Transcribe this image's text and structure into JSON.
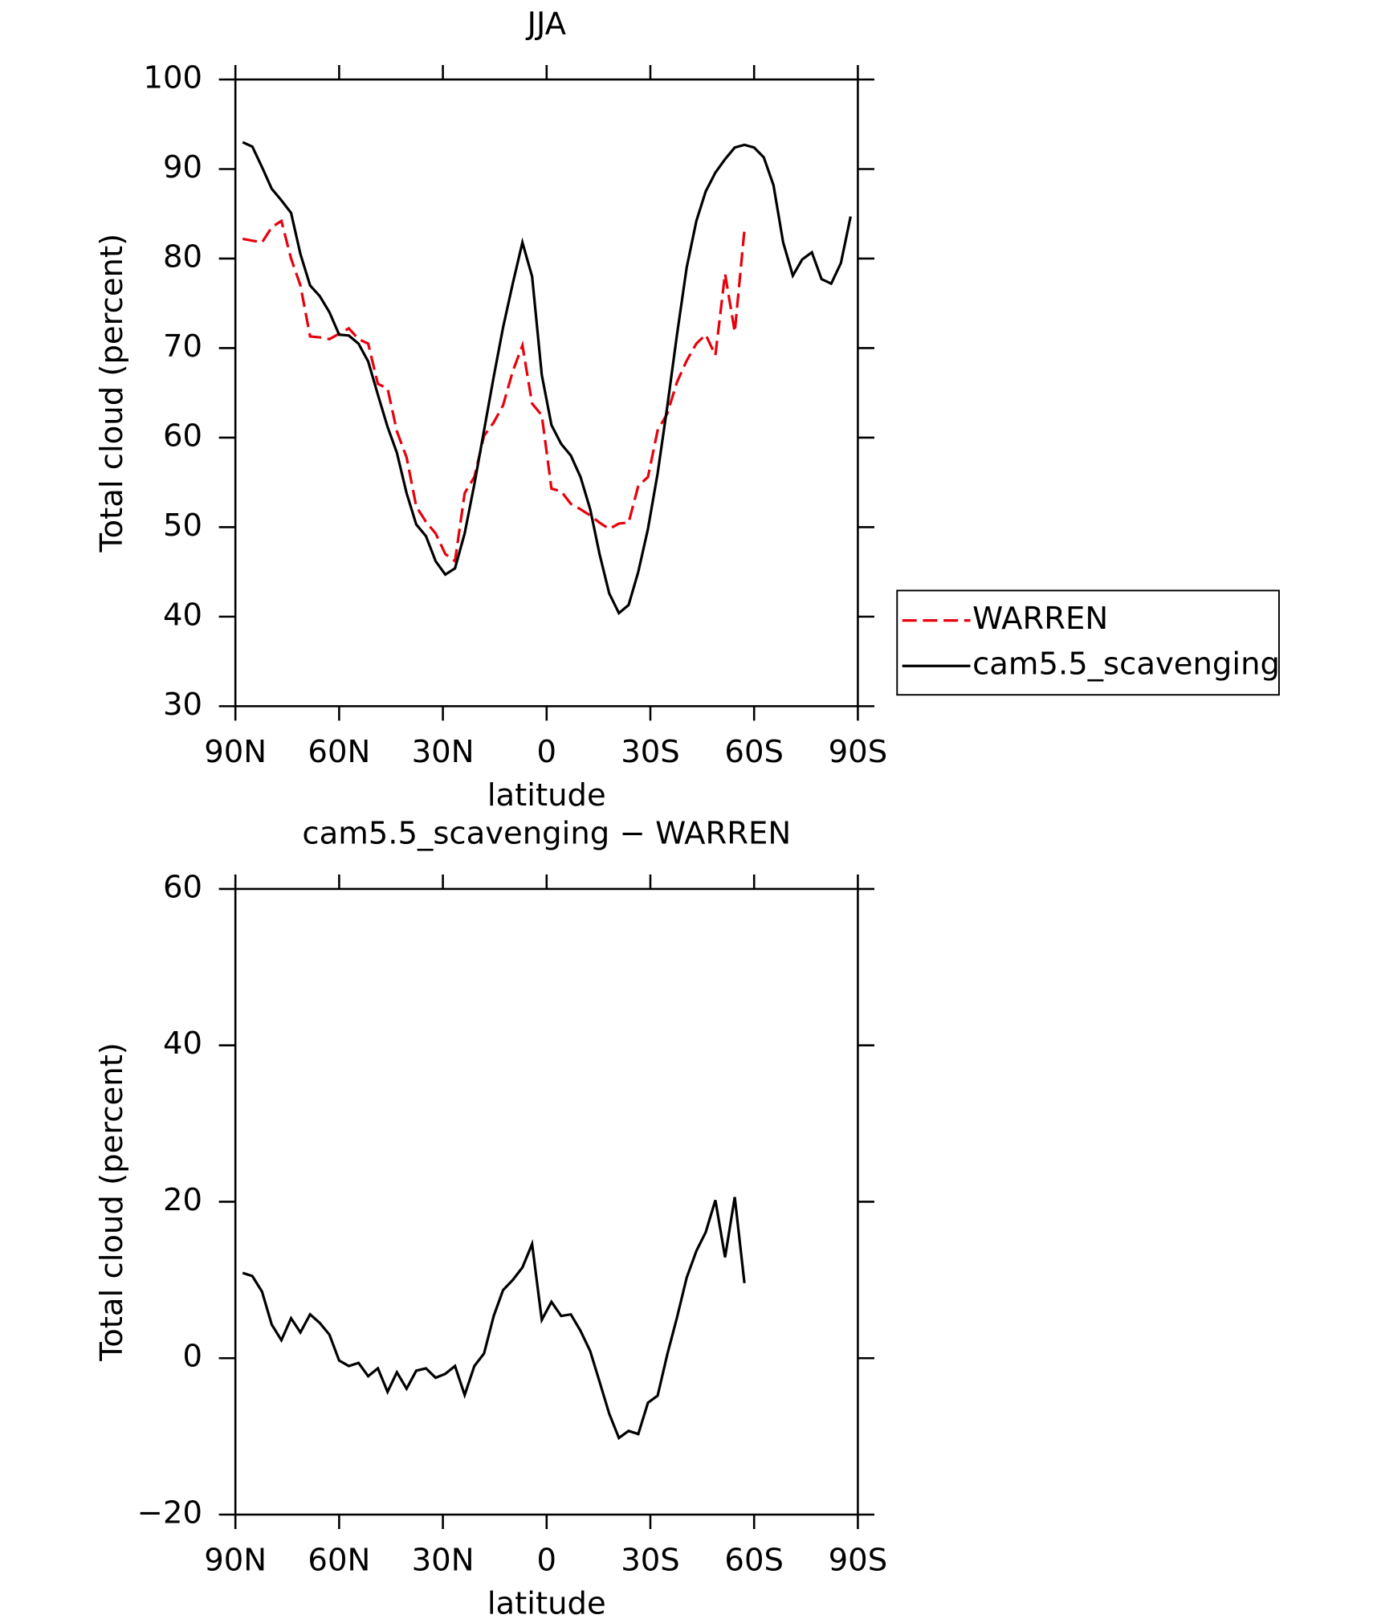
{
  "chart_data": [
    {
      "type": "line",
      "title": "JJA",
      "xlabel": "latitude",
      "ylabel": "Total cloud (percent)",
      "x": [
        87.9,
        85.1,
        82.3,
        79.5,
        76.7,
        73.9,
        71.2,
        68.4,
        65.6,
        62.8,
        60.0,
        57.2,
        54.4,
        51.6,
        48.8,
        46.0,
        43.3,
        40.5,
        37.7,
        34.9,
        32.1,
        29.3,
        26.5,
        23.7,
        20.9,
        18.1,
        15.3,
        12.6,
        9.8,
        7.0,
        4.2,
        1.4,
        -1.4,
        -4.2,
        -7.0,
        -9.8,
        -12.6,
        -15.3,
        -18.1,
        -20.9,
        -23.7,
        -26.5,
        -29.3,
        -32.1,
        -34.9,
        -37.7,
        -40.5,
        -43.3,
        -46.0,
        -48.8,
        -51.6,
        -54.4,
        -57.2,
        -60.0,
        -62.8,
        -65.6,
        -68.4,
        -71.2,
        -73.9,
        -76.7,
        -79.5,
        -82.3,
        -85.1,
        -87.9
      ],
      "series": [
        {
          "name": "WARREN",
          "color": "#e8000b",
          "dash": true,
          "values": [
            82.2,
            82,
            81.8,
            83.5,
            84.2,
            80,
            77,
            71.3,
            71.2,
            71,
            71.6,
            72.2,
            71,
            70.5,
            66,
            65.5,
            60.7,
            57.8,
            52.3,
            50.6,
            49.3,
            47,
            46.2,
            53.8,
            55.6,
            60.2,
            61.7,
            63.6,
            67.4,
            70.3,
            63.8,
            62.5,
            54.3,
            54.0,
            52.6,
            52,
            51.3,
            50.5,
            49.8,
            50.4,
            50.5,
            54.6,
            55.6,
            60.8,
            62.7,
            66.2,
            68.6,
            70.5,
            71.5,
            69.2,
            78.3,
            71.8,
            83.2,
            null,
            null,
            null,
            null,
            null,
            null,
            null,
            null,
            null,
            null,
            null
          ]
        },
        {
          "name": "cam5.5_scavenging",
          "color": "#000000",
          "dash": false,
          "values": [
            93,
            92.5,
            90.2,
            87.8,
            86.5,
            85.1,
            80.5,
            77,
            75.8,
            74,
            71.5,
            71.4,
            70.5,
            68.5,
            64.8,
            61.2,
            58.3,
            53.8,
            50.3,
            49,
            46.2,
            44.7,
            45.4,
            49.3,
            54.8,
            60.8,
            66.8,
            72.3,
            77.2,
            81.8,
            78,
            67,
            61.4,
            59.3,
            58.0,
            55.6,
            52,
            47,
            42.6,
            40.4,
            41.3,
            45,
            49.8,
            56,
            63.5,
            71.5,
            79,
            84.2,
            87.5,
            89.6,
            91.1,
            92.4,
            92.7,
            92.4,
            91.3,
            88.2,
            81.8,
            78.1,
            79.9,
            80.7,
            77.7,
            77.2,
            79.5,
            84.7
          ]
        }
      ],
      "xlim": [
        90,
        -90
      ],
      "xticks": [
        {
          "value": 90,
          "label": "90N"
        },
        {
          "value": 60,
          "label": "60N"
        },
        {
          "value": 30,
          "label": "30N"
        },
        0,
        {
          "value": -30,
          "label": "30S"
        },
        {
          "value": -60,
          "label": "60S"
        },
        {
          "value": -90,
          "label": "90S"
        }
      ],
      "ylim": [
        30,
        100
      ],
      "yticks": [
        30,
        40,
        50,
        60,
        70,
        80,
        90,
        100
      ],
      "legend": "right"
    },
    {
      "type": "line",
      "title": "cam5.5_scavenging − WARREN",
      "xlabel": "latitude",
      "ylabel": "Total cloud (percent)",
      "x": [
        87.9,
        85.1,
        82.3,
        79.5,
        76.7,
        73.9,
        71.2,
        68.4,
        65.6,
        62.8,
        60.0,
        57.2,
        54.4,
        51.6,
        48.8,
        46.0,
        43.3,
        40.5,
        37.7,
        34.9,
        32.1,
        29.3,
        26.5,
        23.7,
        20.9,
        18.1,
        15.3,
        12.6,
        9.8,
        7.0,
        4.2,
        1.4,
        -1.4,
        -4.2,
        -7.0,
        -9.8,
        -12.6,
        -15.3,
        -18.1,
        -20.9,
        -23.7,
        -26.5,
        -29.3,
        -32.1,
        -34.9,
        -37.7,
        -40.5,
        -43.3,
        -46.0,
        -48.8,
        -51.6,
        -54.4,
        -57.2,
        -60.0,
        -62.8,
        -65.6,
        -68.4,
        -71.2,
        -73.9,
        -76.7,
        -79.5,
        -82.3,
        -85.1,
        -87.9
      ],
      "series": [
        {
          "color": "#000000",
          "dash": false,
          "values": [
            10.9,
            10.5,
            8.5,
            4.3,
            2.3,
            5.1,
            3.3,
            5.6,
            4.5,
            3,
            -0.3,
            -1.0,
            -0.6,
            -2.3,
            -1.3,
            -4.3,
            -1.8,
            -3.9,
            -1.6,
            -1.3,
            -2.5,
            -2.0,
            -1.0,
            -4.7,
            -1.0,
            0.6,
            5.4,
            8.7,
            10.0,
            11.6,
            14.6,
            4.9,
            7.2,
            5.4,
            5.6,
            3.5,
            0.9,
            -3.0,
            -7.1,
            -10.2,
            -9.3,
            -9.7,
            -5.7,
            -4.8,
            0.5,
            5.2,
            10.3,
            13.7,
            16.1,
            20.2,
            12.9,
            20.6,
            9.6,
            null,
            null,
            null,
            null,
            null,
            null,
            null,
            null,
            null,
            null,
            null
          ]
        }
      ],
      "xlim": [
        90,
        -90
      ],
      "xticks": [
        {
          "value": 90,
          "label": "90N"
        },
        {
          "value": 60,
          "label": "60N"
        },
        {
          "value": 30,
          "label": "30N"
        },
        0,
        {
          "value": -30,
          "label": "30S"
        },
        {
          "value": -60,
          "label": "60S"
        },
        {
          "value": -90,
          "label": "90S"
        }
      ],
      "ylim": [
        -20,
        60
      ],
      "yticks": [
        {
          "value": -20,
          "label": "−20"
        },
        0,
        20,
        40,
        60
      ]
    }
  ]
}
